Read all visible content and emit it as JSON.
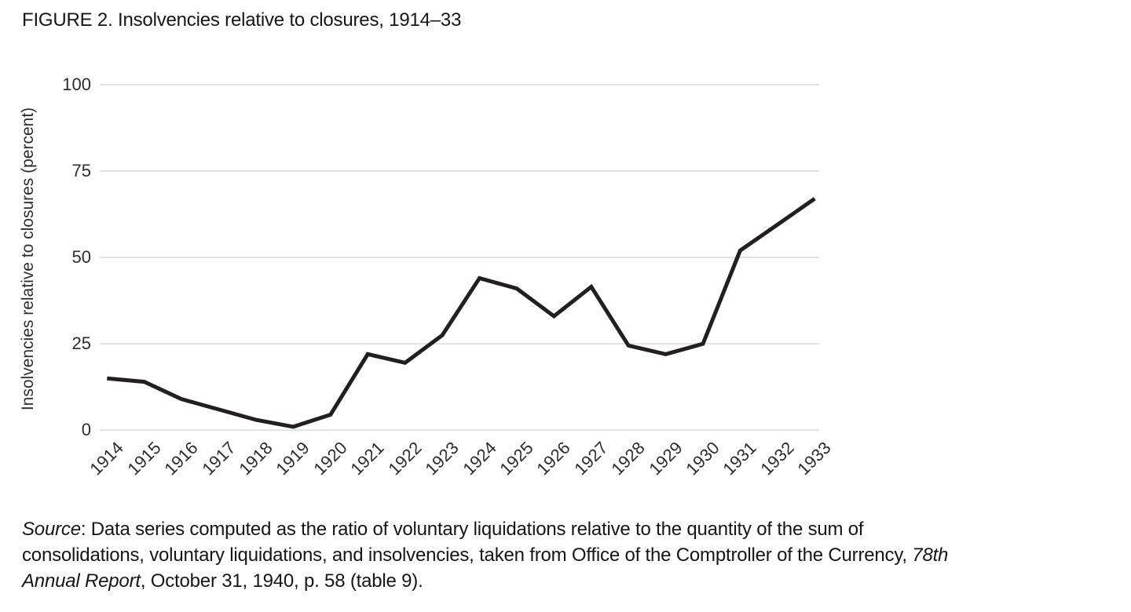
{
  "figure": {
    "title": "FIGURE 2. Insolvencies relative to closures, 1914–33"
  },
  "chart_data": {
    "type": "line",
    "title": "FIGURE 2. Insolvencies relative to closures, 1914–33",
    "xlabel": "",
    "ylabel": "Insolvencies relative to closures (percent)",
    "x": [
      1914,
      1915,
      1916,
      1917,
      1918,
      1919,
      1920,
      1921,
      1922,
      1923,
      1924,
      1925,
      1926,
      1927,
      1928,
      1929,
      1930,
      1931,
      1932,
      1933
    ],
    "values": [
      15,
      14,
      9,
      6,
      3,
      1,
      4.5,
      22,
      19.5,
      27.5,
      44,
      41,
      33,
      41.5,
      24.5,
      22,
      25,
      52,
      59.5,
      67
    ],
    "ylim": [
      0,
      100
    ],
    "yticks": [
      0,
      25,
      50,
      75,
      100
    ],
    "grid": "horizontal",
    "legend": "none",
    "line_color": "#231f20",
    "grid_color": "#e1e1e1",
    "text_color": "#2d2d2d"
  },
  "source": {
    "lines": [
      [
        {
          "t": "Source",
          "i": true
        },
        {
          "t": ": Data series computed as the ratio of voluntary liquidations relative to the quantity of the sum of",
          "i": false
        }
      ],
      [
        {
          "t": "consolidations, voluntary liquidations, and insolvencies, taken from Office of the Comptroller of the Currency, ",
          "i": false
        },
        {
          "t": "78th",
          "i": true
        }
      ],
      [
        {
          "t": "Annual Report",
          "i": true
        },
        {
          "t": ", October 31, 1940, p. 58 (table 9).",
          "i": false
        }
      ]
    ]
  }
}
